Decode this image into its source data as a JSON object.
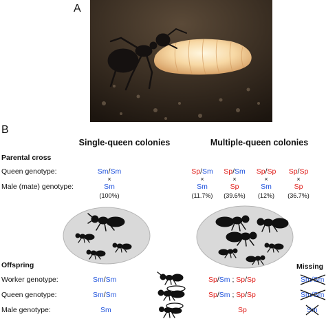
{
  "panel_a": {
    "letter": "A"
  },
  "panel_b": {
    "letter": "B",
    "single_title": "Single-queen colonies",
    "multiple_title": "Multiple-queen colonies",
    "parental_cross_heading": "Parental cross",
    "queen_genotype_label": "Queen genotype:",
    "male_genotype_label": "Male (mate) genotype:",
    "single": {
      "queen_a": "Sm",
      "queen_b": "Sm",
      "times": "×",
      "male": "Sm",
      "pct": "(100%)"
    },
    "multiple": [
      {
        "queen_a": "Sp",
        "queen_b": "Sm",
        "times": "×",
        "male": "Sm",
        "pct": "(11.7%)"
      },
      {
        "queen_a": "Sp",
        "queen_b": "Sm",
        "times": "×",
        "male": "Sp",
        "pct": "(39.6%)"
      },
      {
        "queen_a": "Sp",
        "queen_b": "Sp",
        "times": "×",
        "male": "Sm",
        "pct": "(12%)"
      },
      {
        "queen_a": "Sp",
        "queen_b": "Sp",
        "times": "×",
        "male": "Sp",
        "pct": "(36.7%)"
      }
    ],
    "offspring_heading": "Offspring",
    "missing_heading": "Missing",
    "worker_genotype_label": "Worker genotype:",
    "queen_genotype_label_2": "Queen genotype:",
    "male_genotype_label_2": "Male genotype:",
    "offspring_single": {
      "worker_a": "Sm",
      "worker_b": "Sm",
      "queen_a": "Sm",
      "queen_b": "Sm",
      "male": "Sm"
    },
    "offspring_multiple": {
      "worker_1a": "Sp",
      "worker_1b": "Sm",
      "worker_sep": ";",
      "worker_2a": "Sp",
      "worker_2b": "Sp",
      "queen_1a": "Sp",
      "queen_1b": "Sm",
      "queen_sep": ";",
      "queen_2a": "Sp",
      "queen_2b": "Sp",
      "male": "Sp"
    },
    "missing": {
      "worker_a": "Sm",
      "worker_b": "Sm",
      "queen_a": "Sm",
      "queen_b": "Sm",
      "male": "Sm"
    },
    "slash": "/",
    "colors": {
      "sm": "#2255dd",
      "sp": "#e0201c",
      "colony_fill": "#d9d9d9"
    }
  }
}
